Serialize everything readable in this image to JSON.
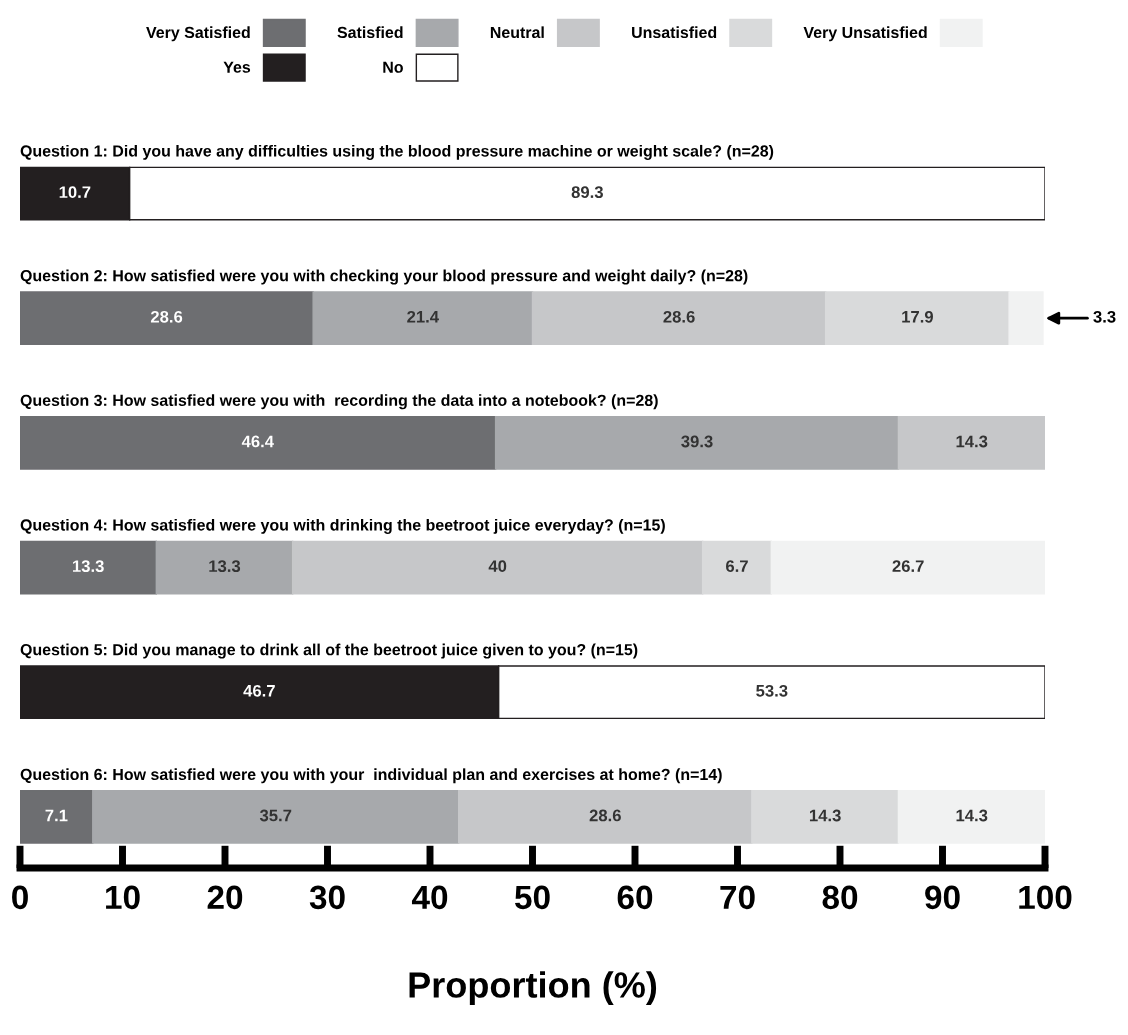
{
  "chart_data": {
    "type": "bar",
    "orientation": "horizontal",
    "stacked": true,
    "xlabel": "Proportion (%)",
    "categories": [
      "Question 1: Did you have any difficulties using the blood pressure machine or weight scale? (n=28)",
      "Question 2: How satisfied were you with checking your blood pressure and weight daily? (n=28)",
      "Question 3: How satisfied were you with  recording the data into a notebook? (n=28)",
      "Question 4: How satisfied were you with drinking the beetroot juice everyday? (n=15)",
      "Question 5: Did you manage to drink all of the beetroot juice given to you? (n=15)",
      "Question 6: How satisfied were you with your  individual plan and exercises at home? (n=14)"
    ],
    "series": [
      {
        "name": "Very Satisfied",
        "color": "#6d6e71",
        "values": [
          null,
          28.6,
          46.4,
          13.3,
          null,
          7.1
        ],
        "value_labels": [
          null,
          "28.6",
          "46.4",
          "13.3",
          null,
          "7.1"
        ]
      },
      {
        "name": "Satisfied",
        "color": "#a7a9ac",
        "values": [
          null,
          21.4,
          39.3,
          13.3,
          null,
          35.7
        ],
        "value_labels": [
          null,
          "21.4",
          "39.3",
          "13.3",
          null,
          "35.7"
        ]
      },
      {
        "name": "Neutral",
        "color": "#c6c7c9",
        "values": [
          null,
          28.6,
          14.3,
          40,
          null,
          28.6
        ],
        "value_labels": [
          null,
          "28.6",
          "14.3",
          "40",
          null,
          "28.6"
        ]
      },
      {
        "name": "Unsatisfied",
        "color": "#d9dadb",
        "values": [
          null,
          17.9,
          null,
          6.7,
          null,
          14.3
        ],
        "value_labels": [
          null,
          "17.9",
          null,
          "6.7",
          null,
          "14.3"
        ]
      },
      {
        "name": "Very Unsatisfied",
        "color": "#f1f2f2",
        "values": [
          null,
          3.3,
          null,
          26.7,
          null,
          14.3
        ],
        "value_labels": [
          null,
          "3.3",
          null,
          "26.7",
          null,
          "14.3"
        ]
      },
      {
        "name": "Yes",
        "color": "#231f20",
        "values": [
          10.7,
          null,
          null,
          null,
          46.7,
          null
        ],
        "value_labels": [
          "10.7",
          null,
          null,
          null,
          "46.7",
          null
        ]
      },
      {
        "name": "No",
        "color": "#ffffff",
        "values": [
          89.3,
          null,
          null,
          null,
          53.3,
          null
        ],
        "value_labels": [
          "89.3",
          null,
          null,
          null,
          "53.3",
          null
        ]
      }
    ],
    "xlim": [
      0,
      100
    ],
    "xticks": [
      0,
      10,
      20,
      30,
      40,
      50,
      60,
      70,
      80,
      90,
      100
    ],
    "grid": false,
    "legend": "top",
    "tick_labels": "x"
  }
}
